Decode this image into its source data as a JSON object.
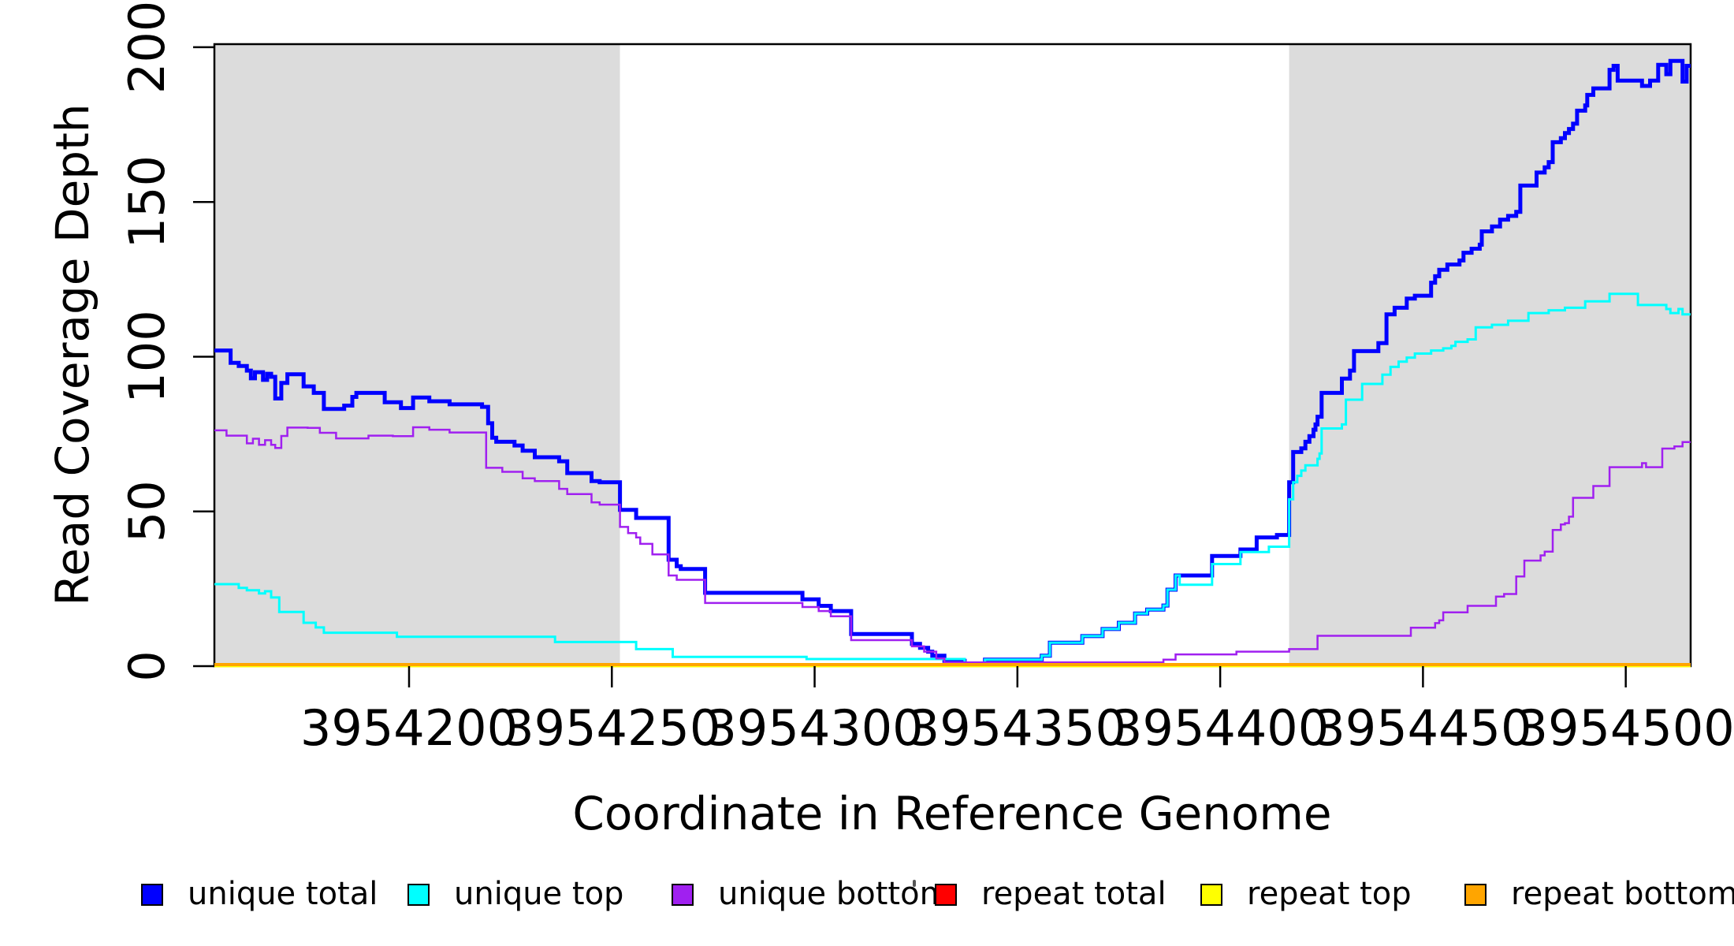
{
  "chart_data": {
    "type": "line",
    "subtype": "step-coverage-plot",
    "title": "",
    "xlabel": "Coordinate in Reference Genome",
    "ylabel": "Read Coverage Depth",
    "xlim": [
      3954152,
      3954516
    ],
    "ylim": [
      0,
      201
    ],
    "x_ticks": [
      3954200,
      3954250,
      3954300,
      3954350,
      3954400,
      3954450,
      3954500
    ],
    "x_tick_labels": [
      "3954200",
      "3954250",
      "3954300",
      "3954350",
      "3954400",
      "3954450",
      "3954500"
    ],
    "y_ticks": [
      0,
      50,
      100,
      150,
      200
    ],
    "y_tick_labels": [
      "0",
      "50",
      "100",
      "150",
      "200"
    ],
    "grid": false,
    "background_color": "#ffffff",
    "shaded_region_color": "#dcdcdc",
    "shaded_regions": [
      {
        "x0": 3954152,
        "x1": 3954252
      },
      {
        "x0": 3954417,
        "x1": 3954516
      }
    ],
    "legend_position": "bottom",
    "legend": [
      "unique total",
      "unique top",
      "unique bottom",
      "repeat total",
      "repeat top",
      "repeat bottom"
    ],
    "series": [
      {
        "name": "unique total",
        "color": "#0000ff",
        "width": 5,
        "points": [
          [
            3954152,
            102
          ],
          [
            3954156,
            98
          ],
          [
            3954158,
            97
          ],
          [
            3954160,
            95.5
          ],
          [
            3954161,
            93
          ],
          [
            3954162,
            95
          ],
          [
            3954164,
            92.5
          ],
          [
            3954165,
            94.5
          ],
          [
            3954166,
            93.5
          ],
          [
            3954167,
            86.5
          ],
          [
            3954168.5,
            91.5
          ],
          [
            3954170,
            94.3
          ],
          [
            3954174,
            90.4
          ],
          [
            3954176.5,
            88.3
          ],
          [
            3954179,
            83.1
          ],
          [
            3954184,
            84.2
          ],
          [
            3954186,
            87
          ],
          [
            3954187,
            88.3
          ],
          [
            3954194,
            85.3
          ],
          [
            3954198,
            83.4
          ],
          [
            3954201,
            86.8
          ],
          [
            3954205,
            85.6
          ],
          [
            3954210,
            84.6
          ],
          [
            3954218,
            83.8
          ],
          [
            3954219.5,
            78.5
          ],
          [
            3954220.5,
            73.8
          ],
          [
            3954221.5,
            72.5
          ],
          [
            3954226,
            71.3
          ],
          [
            3954228,
            69.6
          ],
          [
            3954231,
            67.5
          ],
          [
            3954237,
            66.2
          ],
          [
            3954239,
            62.4
          ],
          [
            3954245,
            59.8
          ],
          [
            3954247,
            59.4
          ],
          [
            3954252,
            50.5
          ],
          [
            3954256,
            47.9
          ],
          [
            3954264,
            34.4
          ],
          [
            3954266,
            32.3
          ],
          [
            3954267,
            31.4
          ],
          [
            3954273,
            23.7
          ],
          [
            3954297,
            21.6
          ],
          [
            3954301,
            19.5
          ],
          [
            3954304,
            17.8
          ],
          [
            3954309,
            10.4
          ],
          [
            3954324,
            7.2
          ],
          [
            3954326,
            5.9
          ],
          [
            3954328,
            4.7
          ],
          [
            3954329,
            3.4
          ],
          [
            3954332,
            1.7
          ],
          [
            3954337,
            0.9
          ],
          [
            3954342,
            2.1
          ],
          [
            3954356,
            3.4
          ],
          [
            3954358,
            7.6
          ],
          [
            3954366,
            9.7
          ],
          [
            3954371,
            12
          ],
          [
            3954375,
            14
          ],
          [
            3954379,
            17
          ],
          [
            3954382,
            18.3
          ],
          [
            3954386,
            19.6
          ],
          [
            3954387,
            24.7
          ],
          [
            3954389,
            29.3
          ],
          [
            3954398,
            35.6
          ],
          [
            3954405,
            37.7
          ],
          [
            3954409,
            41.6
          ],
          [
            3954414,
            42.4
          ],
          [
            3954417,
            59.4
          ],
          [
            3954418,
            69.2
          ],
          [
            3954420,
            70.4
          ],
          [
            3954421,
            72.5
          ],
          [
            3954422,
            74.3
          ],
          [
            3954423,
            76.4
          ],
          [
            3954423.5,
            78.1
          ],
          [
            3954424,
            80.6
          ],
          [
            3954425,
            88.3
          ],
          [
            3954430,
            92.9
          ],
          [
            3954432,
            95.5
          ],
          [
            3954433,
            101.8
          ],
          [
            3954439,
            104.4
          ],
          [
            3954441,
            113.7
          ],
          [
            3954443,
            115.8
          ],
          [
            3954446,
            118.8
          ],
          [
            3954448,
            119.7
          ],
          [
            3954452,
            123.9
          ],
          [
            3954453,
            126
          ],
          [
            3954454,
            128.1
          ],
          [
            3954456,
            129.8
          ],
          [
            3954459,
            131.1
          ],
          [
            3954460,
            133.6
          ],
          [
            3954462,
            134.9
          ],
          [
            3954464,
            136.2
          ],
          [
            3954464.5,
            140.5
          ],
          [
            3954467,
            142.1
          ],
          [
            3954469,
            144.3
          ],
          [
            3954471,
            145.5
          ],
          [
            3954473,
            146.8
          ],
          [
            3954474,
            155.3
          ],
          [
            3954478,
            159.5
          ],
          [
            3954480,
            161.2
          ],
          [
            3954481,
            162.9
          ],
          [
            3954482,
            169.3
          ],
          [
            3954484,
            170.6
          ],
          [
            3954485,
            172.3
          ],
          [
            3954486,
            173.6
          ],
          [
            3954487,
            175.3
          ],
          [
            3954488,
            179.5
          ],
          [
            3954490,
            181.2
          ],
          [
            3954490.5,
            184.6
          ],
          [
            3954492,
            186.7
          ],
          [
            3954496,
            192.7
          ],
          [
            3954497,
            194
          ],
          [
            3954498,
            189.2
          ],
          [
            3954504,
            187.5
          ],
          [
            3954506,
            189.2
          ],
          [
            3954508,
            194.3
          ],
          [
            3954510,
            191.3
          ],
          [
            3954511,
            195.6
          ],
          [
            3954514,
            188.9
          ],
          [
            3954515,
            194
          ],
          [
            3954516,
            194
          ]
        ]
      },
      {
        "name": "unique top",
        "color": "#00ffff",
        "width": 3,
        "points": [
          [
            3954152,
            26.5
          ],
          [
            3954158,
            25.3
          ],
          [
            3954160,
            24.5
          ],
          [
            3954163,
            23.5
          ],
          [
            3954164.5,
            24.2
          ],
          [
            3954166,
            22.2
          ],
          [
            3954168,
            17.5
          ],
          [
            3954174,
            14
          ],
          [
            3954177,
            12.5
          ],
          [
            3954179,
            10.8
          ],
          [
            3954197,
            9.5
          ],
          [
            3954236,
            7.8
          ],
          [
            3954256,
            5.5
          ],
          [
            3954265,
            3
          ],
          [
            3954298,
            2.3
          ],
          [
            3954337,
            0.8
          ],
          [
            3954342,
            2.1
          ],
          [
            3954356,
            3.4
          ],
          [
            3954358,
            7.6
          ],
          [
            3954366,
            9.7
          ],
          [
            3954371,
            12
          ],
          [
            3954375,
            14
          ],
          [
            3954379,
            17
          ],
          [
            3954382,
            18.3
          ],
          [
            3954386,
            19.6
          ],
          [
            3954387,
            24.7
          ],
          [
            3954389,
            29.3
          ],
          [
            3954390,
            26.3
          ],
          [
            3954398,
            33
          ],
          [
            3954405,
            36.9
          ],
          [
            3954412,
            38.6
          ],
          [
            3954417,
            53.9
          ],
          [
            3954418,
            59.4
          ],
          [
            3954419,
            61.5
          ],
          [
            3954420,
            63.2
          ],
          [
            3954421,
            64.9
          ],
          [
            3954424,
            67
          ],
          [
            3954424.5,
            68.7
          ],
          [
            3954425,
            76.8
          ],
          [
            3954430,
            78.1
          ],
          [
            3954431,
            86.1
          ],
          [
            3954435,
            91.2
          ],
          [
            3954440,
            94.2
          ],
          [
            3954442,
            96.7
          ],
          [
            3954444,
            98.4
          ],
          [
            3954446,
            99.7
          ],
          [
            3954448,
            101
          ],
          [
            3954452,
            102
          ],
          [
            3954455,
            102.7
          ],
          [
            3954457,
            103.5
          ],
          [
            3954458,
            104.8
          ],
          [
            3954461,
            105.6
          ],
          [
            3954463,
            109.5
          ],
          [
            3954467,
            110.3
          ],
          [
            3954471,
            111.6
          ],
          [
            3954476,
            114.1
          ],
          [
            3954481,
            115
          ],
          [
            3954485,
            115.8
          ],
          [
            3954490,
            117.9
          ],
          [
            3954496,
            120.3
          ],
          [
            3954503,
            116.7
          ],
          [
            3954510,
            115.4
          ],
          [
            3954511,
            114.1
          ],
          [
            3954513,
            115.4
          ],
          [
            3954514,
            113.7
          ],
          [
            3954516,
            113.7
          ]
        ]
      },
      {
        "name": "unique bottom",
        "color": "#a020f0",
        "width": 2.5,
        "points": [
          [
            3954152,
            76.2
          ],
          [
            3954155,
            74.5
          ],
          [
            3954160,
            72
          ],
          [
            3954161.5,
            73.5
          ],
          [
            3954163,
            71.5
          ],
          [
            3954164.5,
            73
          ],
          [
            3954166,
            71.5
          ],
          [
            3954167,
            70.5
          ],
          [
            3954168.5,
            74.4
          ],
          [
            3954170,
            77.1
          ],
          [
            3954175,
            77
          ],
          [
            3954178,
            75.4
          ],
          [
            3954182,
            73.6
          ],
          [
            3954190,
            74.5
          ],
          [
            3954196,
            74.3
          ],
          [
            3954201,
            77.2
          ],
          [
            3954205,
            76.4
          ],
          [
            3954210,
            75.5
          ],
          [
            3954218,
            75.5
          ],
          [
            3954219,
            64.1
          ],
          [
            3954223,
            62.8
          ],
          [
            3954228,
            60.7
          ],
          [
            3954231,
            59.8
          ],
          [
            3954237,
            57.3
          ],
          [
            3954239,
            55.6
          ],
          [
            3954245,
            52.9
          ],
          [
            3954247,
            52.2
          ],
          [
            3954252,
            45
          ],
          [
            3954254,
            43
          ],
          [
            3954256,
            41.6
          ],
          [
            3954257,
            39.5
          ],
          [
            3954260,
            36.1
          ],
          [
            3954264,
            29.3
          ],
          [
            3954266,
            27.9
          ],
          [
            3954273,
            20.4
          ],
          [
            3954297,
            19.1
          ],
          [
            3954301,
            17.8
          ],
          [
            3954304,
            16.1
          ],
          [
            3954309,
            8.4
          ],
          [
            3954324,
            6.4
          ],
          [
            3954327,
            4.7
          ],
          [
            3954330,
            2.5
          ],
          [
            3954332,
            1.2
          ],
          [
            3954386,
            2.1
          ],
          [
            3954389,
            3.8
          ],
          [
            3954404,
            4.7
          ],
          [
            3954417,
            5.5
          ],
          [
            3954424,
            9.8
          ],
          [
            3954447,
            12.4
          ],
          [
            3954453,
            13.9
          ],
          [
            3954454,
            14.8
          ],
          [
            3954455,
            17.4
          ],
          [
            3954461,
            19.5
          ],
          [
            3954468,
            22.5
          ],
          [
            3954470,
            23.3
          ],
          [
            3954473,
            29
          ],
          [
            3954475,
            34.1
          ],
          [
            3954479,
            35.8
          ],
          [
            3954480,
            37
          ],
          [
            3954482,
            44
          ],
          [
            3954484,
            45.8
          ],
          [
            3954485,
            46.2
          ],
          [
            3954486,
            48.3
          ],
          [
            3954487,
            54.4
          ],
          [
            3954492,
            58.2
          ],
          [
            3954496,
            64.3
          ],
          [
            3954504,
            65.6
          ],
          [
            3954505,
            64.3
          ],
          [
            3954509,
            70.3
          ],
          [
            3954512,
            71
          ],
          [
            3954514,
            72.4
          ],
          [
            3954516,
            72.4
          ]
        ]
      },
      {
        "name": "repeat total",
        "color": "#ff0000",
        "width": 3,
        "points": [
          [
            3954152,
            0
          ],
          [
            3954516,
            0
          ]
        ]
      },
      {
        "name": "repeat top",
        "color": "#ffff00",
        "width": 3,
        "points": [
          [
            3954152,
            0
          ],
          [
            3954516,
            0
          ]
        ]
      },
      {
        "name": "repeat bottom",
        "color": "#ffa500",
        "width": 4,
        "points": [
          [
            3954152,
            0.5
          ],
          [
            3954516,
            0.5
          ]
        ]
      }
    ]
  }
}
